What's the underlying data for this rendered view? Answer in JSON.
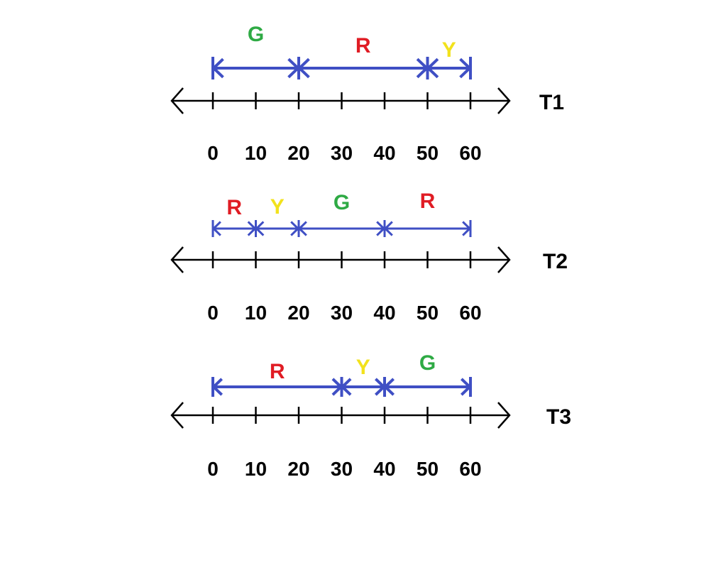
{
  "axis": {
    "ticks": [
      "0",
      "10",
      "20",
      "30",
      "40",
      "50",
      "60"
    ],
    "tick_values": [
      0,
      10,
      20,
      30,
      40,
      50,
      60
    ],
    "line_color": "#000000",
    "arrow_color": "#3f4fc4"
  },
  "phase_colors": {
    "G": "#2eaa44",
    "R": "#e01c24",
    "Y": "#f2e21c"
  },
  "timelines": [
    {
      "label": "T1",
      "segments": [
        {
          "phase": "G",
          "start": 0,
          "end": 20
        },
        {
          "phase": "R",
          "start": 20,
          "end": 50
        },
        {
          "phase": "Y",
          "start": 50,
          "end": 60
        }
      ]
    },
    {
      "label": "T2",
      "segments": [
        {
          "phase": "R",
          "start": 0,
          "end": 10
        },
        {
          "phase": "Y",
          "start": 10,
          "end": 20
        },
        {
          "phase": "G",
          "start": 20,
          "end": 40
        },
        {
          "phase": "R",
          "start": 40,
          "end": 60
        }
      ]
    },
    {
      "label": "T3",
      "segments": [
        {
          "phase": "R",
          "start": 0,
          "end": 30
        },
        {
          "phase": "Y",
          "start": 30,
          "end": 40
        },
        {
          "phase": "G",
          "start": 40,
          "end": 60
        }
      ]
    }
  ]
}
